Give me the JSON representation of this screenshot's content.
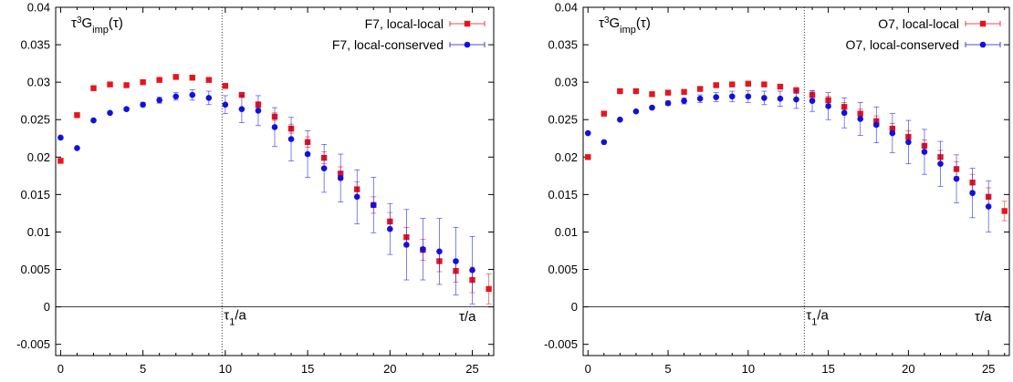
{
  "chart_data": [
    {
      "type": "scatter",
      "ylabel": "τ³G_imp(τ)",
      "ylabel_parts": {
        "base": "τ",
        "sup": "3",
        "mid": "G",
        "sub": "imp",
        "tail": "(τ)"
      },
      "xlabel": "τ/a",
      "xlim": [
        -0.3,
        26.3
      ],
      "ylim": [
        -0.0065,
        0.04
      ],
      "xticks": [
        "0",
        "5",
        "10",
        "15",
        "20",
        "25"
      ],
      "xtick_values": [
        0,
        5,
        10,
        15,
        20,
        25
      ],
      "yticks": [
        "-0.005",
        "0",
        "0.005",
        "0.01",
        "0.015",
        "0.02",
        "0.025",
        "0.03",
        "0.035",
        "0.04"
      ],
      "ytick_values": [
        -0.005,
        0,
        0.005,
        0.01,
        0.015,
        0.02,
        0.025,
        0.03,
        0.035,
        0.04
      ],
      "vline": {
        "x": 9.8,
        "label_base": "τ",
        "label_sub": "1",
        "label_tail": "/a"
      },
      "grid": false,
      "legend_position": "top-right",
      "series": [
        {
          "name": "F7, local-local",
          "color": "#e8141c",
          "marker": "square",
          "x": [
            0,
            1,
            2,
            3,
            4,
            5,
            6,
            7,
            8,
            9,
            10,
            11,
            12,
            13,
            14,
            15,
            16,
            17,
            18,
            19,
            20,
            21,
            22,
            23,
            24,
            25,
            26
          ],
          "y": [
            0.0195,
            0.0256,
            0.0292,
            0.0297,
            0.0296,
            0.03,
            0.0303,
            0.0307,
            0.0306,
            0.0303,
            0.0295,
            0.0283,
            0.027,
            0.0254,
            0.0238,
            0.022,
            0.0199,
            0.0178,
            0.0157,
            0.0136,
            0.0114,
            0.0093,
            0.0076,
            0.0061,
            0.0048,
            0.0036,
            0.0024
          ],
          "err": [
            0.0001,
            0.0001,
            0.0001,
            0.0001,
            0.0001,
            0.0001,
            0.0001,
            0.0001,
            0.0001,
            0.0002,
            0.0003,
            0.0003,
            0.0004,
            0.0005,
            0.0006,
            0.0007,
            0.0008,
            0.0009,
            0.001,
            0.0011,
            0.0012,
            0.0013,
            0.0014,
            0.0014,
            0.0015,
            0.0017,
            0.002
          ]
        },
        {
          "name": "F7, local-conserved",
          "color": "#1010e0",
          "marker": "circle",
          "x": [
            0,
            1,
            2,
            3,
            4,
            5,
            6,
            7,
            8,
            9,
            10,
            11,
            12,
            13,
            14,
            15,
            16,
            17,
            18,
            19,
            20,
            21,
            22,
            23,
            24,
            25
          ],
          "y": [
            0.0226,
            0.0212,
            0.0249,
            0.0259,
            0.0264,
            0.027,
            0.0276,
            0.0281,
            0.0283,
            0.0279,
            0.027,
            0.0264,
            0.0262,
            0.024,
            0.0224,
            0.0204,
            0.0185,
            0.0172,
            0.0147,
            0.0136,
            0.0104,
            0.0083,
            0.0077,
            0.0074,
            0.0061,
            0.0049
          ],
          "err": [
            0.0001,
            0.0001,
            0.0001,
            0.0001,
            0.0002,
            0.0003,
            0.0004,
            0.0005,
            0.0007,
            0.0009,
            0.0012,
            0.0018,
            0.002,
            0.0026,
            0.0029,
            0.0031,
            0.0032,
            0.0032,
            0.0036,
            0.0037,
            0.0034,
            0.0047,
            0.0041,
            0.0044,
            0.0045,
            0.0045
          ]
        }
      ]
    },
    {
      "type": "scatter",
      "ylabel": "τ³G_imp(τ)",
      "ylabel_parts": {
        "base": "τ",
        "sup": "3",
        "mid": "G",
        "sub": "imp",
        "tail": "(τ)"
      },
      "xlabel": "τ/a",
      "xlim": [
        -0.3,
        26.3
      ],
      "ylim": [
        -0.0065,
        0.04
      ],
      "xticks": [
        "0",
        "5",
        "10",
        "15",
        "20",
        "25"
      ],
      "xtick_values": [
        0,
        5,
        10,
        15,
        20,
        25
      ],
      "yticks": [
        "-0.005",
        "0",
        "0.005",
        "0.01",
        "0.015",
        "0.02",
        "0.025",
        "0.03",
        "0.035",
        "0.04"
      ],
      "ytick_values": [
        -0.005,
        0,
        0.005,
        0.01,
        0.015,
        0.02,
        0.025,
        0.03,
        0.035,
        0.04
      ],
      "vline": {
        "x": 13.5,
        "label_base": "τ",
        "label_sub": "1",
        "label_tail": "/a"
      },
      "grid": false,
      "legend_position": "top-right",
      "series": [
        {
          "name": "O7, local-local",
          "color": "#e8141c",
          "marker": "square",
          "x": [
            0,
            1,
            2,
            3,
            4,
            5,
            6,
            7,
            8,
            9,
            10,
            11,
            12,
            13,
            14,
            15,
            16,
            17,
            18,
            19,
            20,
            21,
            22,
            23,
            24,
            25,
            26
          ],
          "y": [
            0.02,
            0.0258,
            0.0288,
            0.0288,
            0.0284,
            0.0286,
            0.0287,
            0.0291,
            0.0296,
            0.0297,
            0.0298,
            0.0297,
            0.0294,
            0.0289,
            0.0283,
            0.0276,
            0.0267,
            0.0258,
            0.0248,
            0.0238,
            0.0227,
            0.0215,
            0.02,
            0.0184,
            0.0166,
            0.0147,
            0.0128
          ],
          "err": [
            0.0001,
            0.0001,
            0.0001,
            0.0001,
            0.0001,
            0.0001,
            0.0002,
            0.0002,
            0.0002,
            0.0002,
            0.0002,
            0.0002,
            0.0003,
            0.0004,
            0.0005,
            0.0005,
            0.0006,
            0.0006,
            0.0007,
            0.0007,
            0.0008,
            0.0008,
            0.0009,
            0.001,
            0.0011,
            0.0012,
            0.0013
          ]
        },
        {
          "name": "O7, local-conserved",
          "color": "#1010e0",
          "marker": "circle",
          "x": [
            0,
            1,
            2,
            3,
            4,
            5,
            6,
            7,
            8,
            9,
            10,
            11,
            12,
            13,
            14,
            15,
            16,
            17,
            18,
            19,
            20,
            21,
            22,
            23,
            24,
            25
          ],
          "y": [
            0.0232,
            0.022,
            0.025,
            0.0261,
            0.0266,
            0.0272,
            0.0275,
            0.0278,
            0.028,
            0.0281,
            0.0281,
            0.0279,
            0.0278,
            0.0277,
            0.0275,
            0.0268,
            0.0259,
            0.0251,
            0.0243,
            0.0232,
            0.022,
            0.0207,
            0.0191,
            0.0171,
            0.0152,
            0.0134
          ],
          "err": [
            0.0001,
            0.0001,
            0.0001,
            0.0001,
            0.0002,
            0.0003,
            0.0004,
            0.0005,
            0.0006,
            0.0007,
            0.0008,
            0.0009,
            0.001,
            0.0012,
            0.0014,
            0.0018,
            0.002,
            0.0022,
            0.0024,
            0.0026,
            0.0029,
            0.003,
            0.003,
            0.0032,
            0.0033,
            0.0034
          ]
        }
      ]
    }
  ]
}
